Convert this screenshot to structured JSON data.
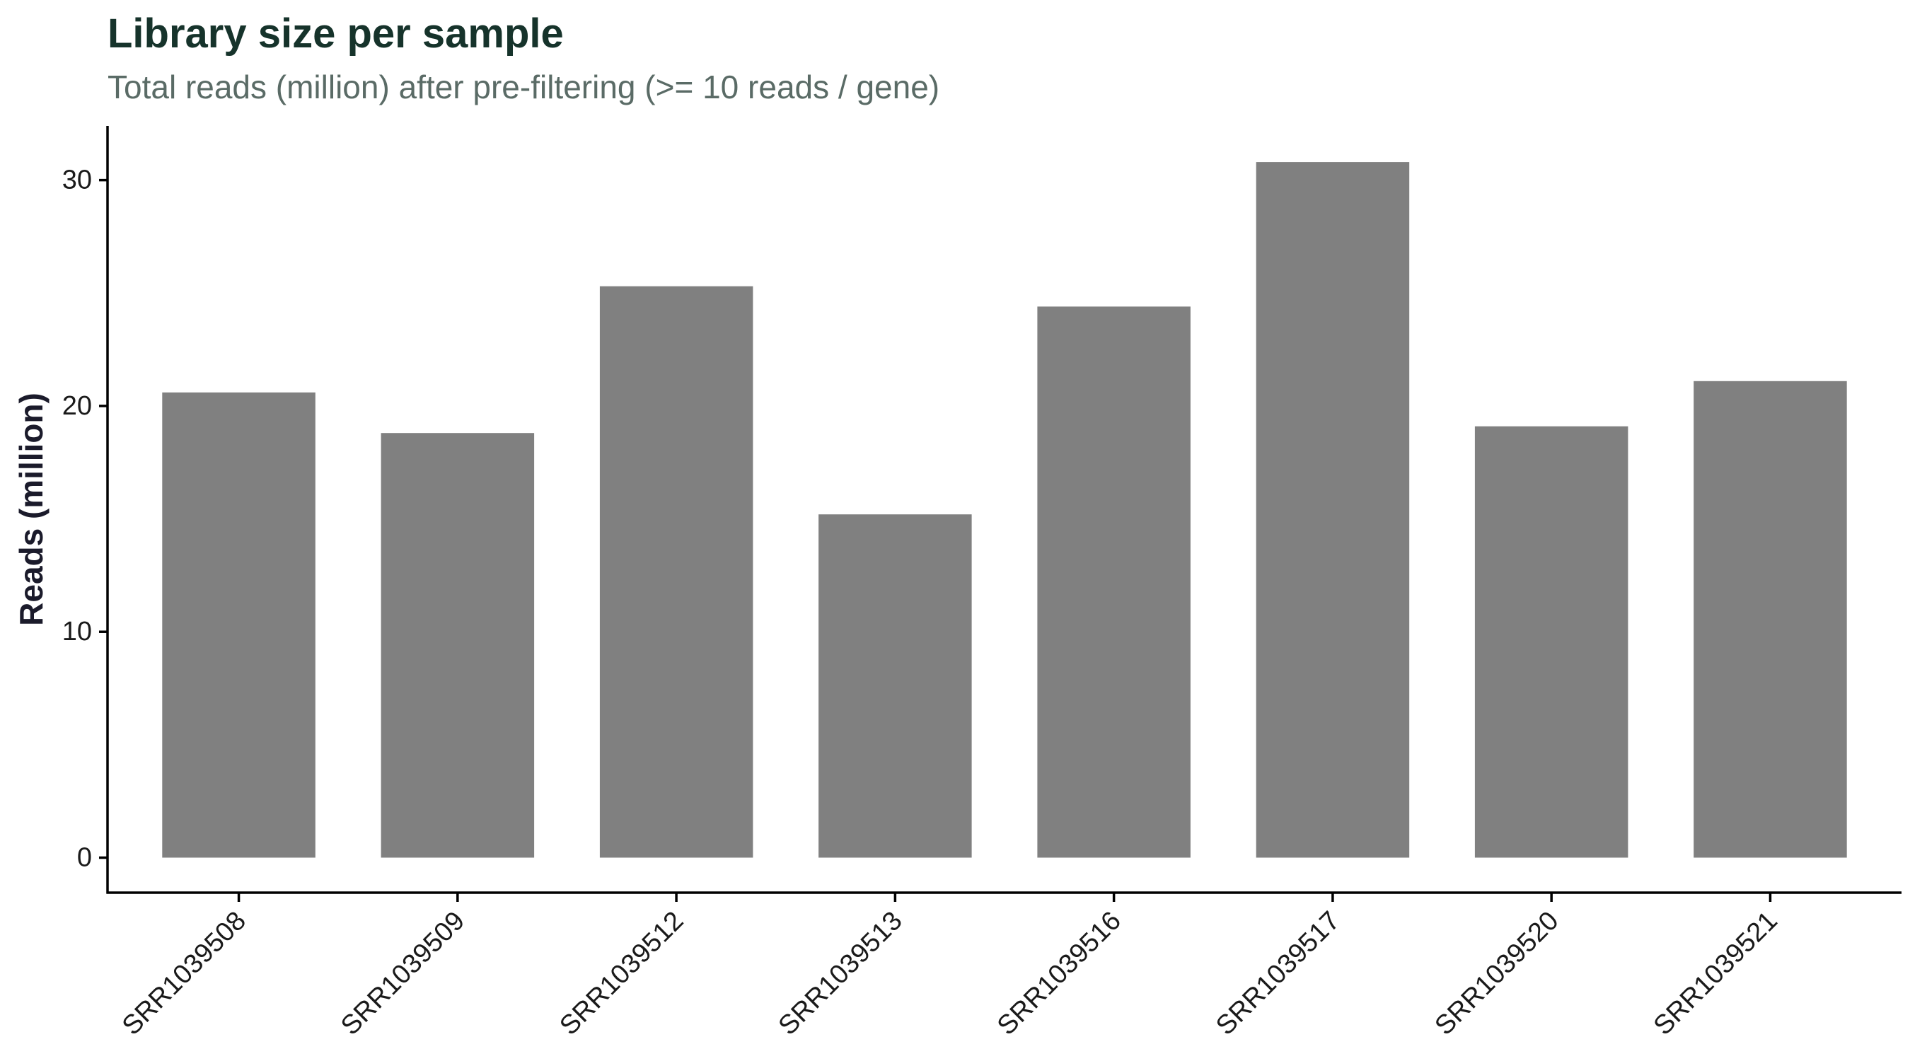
{
  "chart_data": {
    "type": "bar",
    "title": "Library size per sample",
    "subtitle": "Total reads (million) after pre-filtering (>= 10 reads / gene)",
    "xlabel": "",
    "ylabel": "Reads (million)",
    "categories": [
      "SRR1039508",
      "SRR1039509",
      "SRR1039512",
      "SRR1039513",
      "SRR1039516",
      "SRR1039517",
      "SRR1039520",
      "SRR1039521"
    ],
    "values": [
      20.6,
      18.8,
      25.3,
      15.2,
      24.4,
      30.8,
      19.1,
      21.1
    ],
    "ylim": [
      -1.55,
      32.4
    ],
    "yticks": [
      0,
      10,
      20,
      30
    ],
    "ytick_labels": [
      "0",
      "10",
      "20",
      "30"
    ],
    "grid": false,
    "legend": "none",
    "bar_color": "#808080",
    "axis_color": "#000000"
  }
}
